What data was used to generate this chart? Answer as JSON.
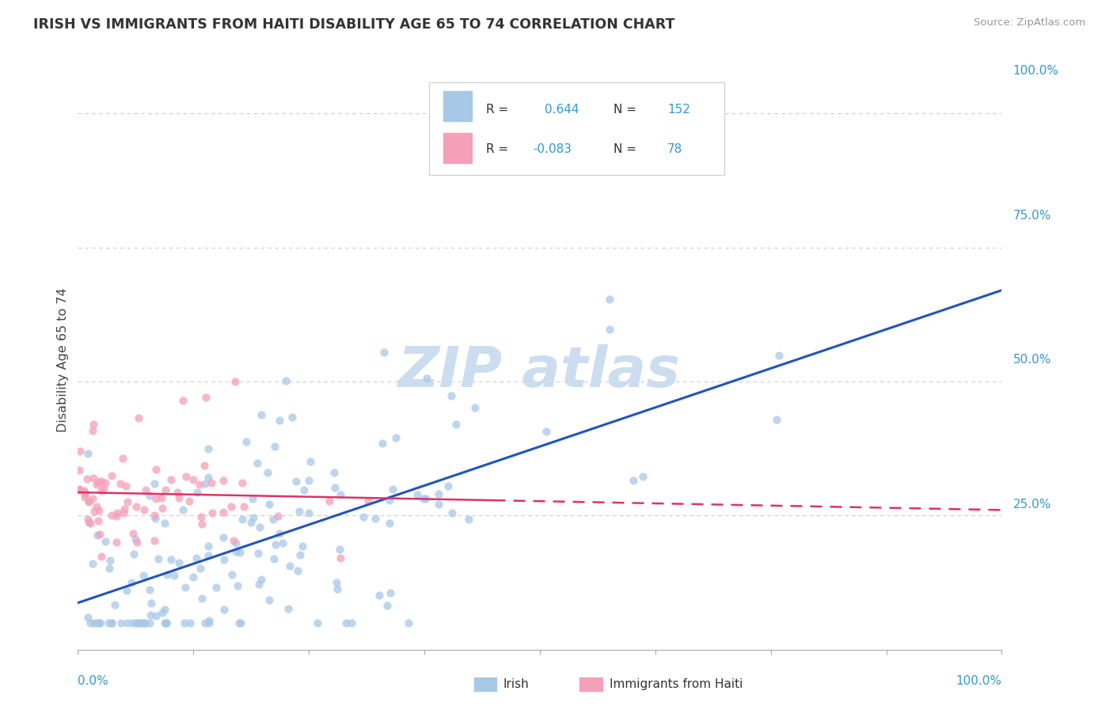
{
  "title": "IRISH VS IMMIGRANTS FROM HAITI DISABILITY AGE 65 TO 74 CORRELATION CHART",
  "source": "Source: ZipAtlas.com",
  "ylabel": "Disability Age 65 to 74",
  "r1": 0.644,
  "n1": 152,
  "r2": -0.083,
  "n2": 78,
  "irish_color": "#a8c8e8",
  "haiti_color": "#f4a0b8",
  "irish_line_color": "#2255bb",
  "haiti_line_color": "#dd3366",
  "background_color": "#ffffff",
  "ytick_vals": [
    0.25,
    0.5,
    0.75,
    1.0
  ],
  "ytick_labels": [
    "25.0%",
    "50.0%",
    "75.0%",
    "100.0%"
  ],
  "watermark_text": "ZIPatlas",
  "watermark_color": "#ccddf0",
  "legend_label1": "Irish",
  "legend_label2": "Immigrants from Haiti"
}
